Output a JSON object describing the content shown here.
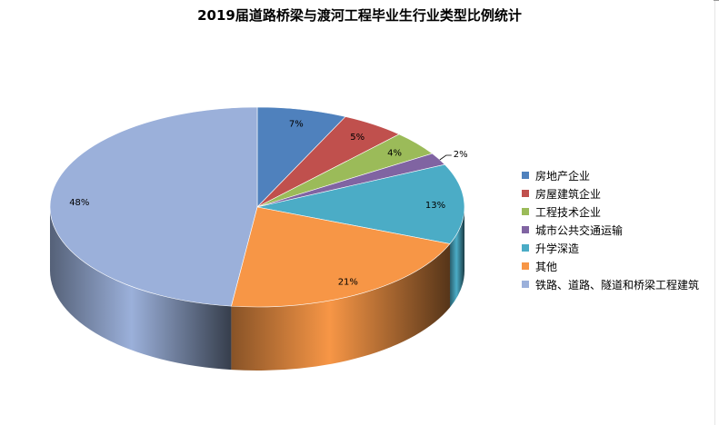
{
  "chart_data": {
    "type": "pie",
    "title": "2019届道路桥梁与渡河工程毕业生行业类型比例统计",
    "legend_position": "right",
    "slices": [
      {
        "label": "房地产企业",
        "value": 7,
        "display": "7%",
        "color": "#4F81BD"
      },
      {
        "label": "房屋建筑企业",
        "value": 5,
        "display": "5%",
        "color": "#C0504D"
      },
      {
        "label": "工程技术企业",
        "value": 4,
        "display": "4%",
        "color": "#9BBB59"
      },
      {
        "label": "城市公共交通运输",
        "value": 2,
        "display": "2%",
        "color": "#8064A2"
      },
      {
        "label": "升学深造",
        "value": 13,
        "display": "13%",
        "color": "#4BACC6"
      },
      {
        "label": "其他",
        "value": 21,
        "display": "21%",
        "color": "#F79646"
      },
      {
        "label": "铁路、道路、隧道和桥梁工程建筑",
        "value": 48,
        "display": "48%",
        "color": "#9BB0DA"
      }
    ]
  }
}
